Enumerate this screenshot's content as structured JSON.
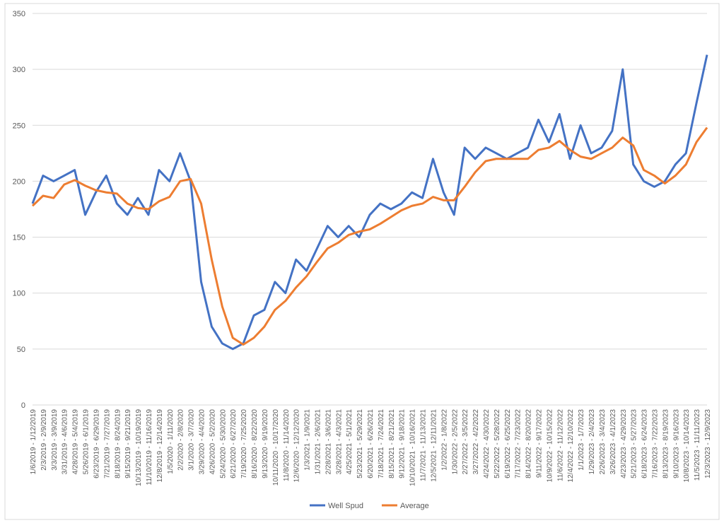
{
  "chart_data": {
    "type": "line",
    "categories": [
      "1/6/2019 - 1/12/2019",
      "2/3/2019 - 2/9/2019",
      "3/3/2019 - 3/9/2019",
      "3/31/2019 - 4/6/2019",
      "4/28/2019 - 5/4/2019",
      "5/26/2019 - 6/1/2019",
      "6/23/2019 - 6/29/2019",
      "7/21/2019 - 7/27/2019",
      "8/18/2019 - 8/24/2019",
      "9/15/2019 - 9/21/2019",
      "10/13/2019 - 10/19/2019",
      "11/10/2019 - 11/16/2019",
      "12/8/2019 - 12/14/2019",
      "1/5/2020 - 1/11/2020",
      "2/2/2020 - 2/8/2020",
      "3/1/2020 - 3/7/2020",
      "3/29/2020 - 4/4/2020",
      "4/26/2020 - 5/2/2020",
      "5/24/2020 - 5/30/2020",
      "6/21/2020 - 6/27/2020",
      "7/19/2020 - 7/25/2020",
      "8/16/2020 - 8/22/2020",
      "9/13/2020 - 9/19/2020",
      "10/11/2020 - 10/17/2020",
      "11/8/2020 - 11/14/2020",
      "12/6/2020 - 12/12/2020",
      "1/3/2021 - 1/9/2021",
      "1/31/2021 - 2/6/2021",
      "2/28/2021 - 3/6/2021",
      "3/28/2021 - 4/3/2021",
      "4/25/2021 - 5/1/2021",
      "5/23/2021 - 5/29/2021",
      "6/20/2021 - 6/26/2021",
      "7/18/2021 - 7/24/2021",
      "8/15/2021 - 8/21/2021",
      "9/12/2021 - 9/18/2021",
      "10/10/2021 - 10/16/2021",
      "11/7/2021 - 11/13/2021",
      "12/5/2021 - 12/11/2021",
      "1/2/2022 - 1/8/2022",
      "1/30/2022 - 2/5/2022",
      "2/27/2022 - 3/5/2022",
      "3/27/2022 - 4/2/2022",
      "4/24/2022 - 4/30/2022",
      "5/22/2022 - 5/28/2022",
      "6/19/2022 - 6/25/2022",
      "7/17/2022 - 7/23/2022",
      "8/14/2022 - 8/20/2022",
      "9/11/2022 - 9/17/2022",
      "10/9/2022 - 10/15/2022",
      "11/6/2022 - 11/12/2022",
      "12/4/2022 - 12/10/2022",
      "1/1/2023 - 1/7/2023",
      "1/29/2023 - 2/4/2023",
      "2/26/2023 - 3/4/2023",
      "3/26/2023 - 4/1/2023",
      "4/23/2023 - 4/29/2023",
      "5/21/2023 - 5/27/2023",
      "6/18/2023 - 6/24/2023",
      "7/16/2023 - 7/22/2023",
      "8/13/2023 - 8/19/2023",
      "9/10/2023 - 9/16/2023",
      "10/8/2023 - 10/14/2023",
      "11/5/2023 - 11/11/2023",
      "12/3/2023 - 12/9/2023"
    ],
    "series": [
      {
        "name": "Well Spud",
        "color": "#4472c4",
        "values": [
          180,
          205,
          200,
          205,
          210,
          170,
          190,
          205,
          180,
          170,
          185,
          170,
          210,
          200,
          225,
          200,
          110,
          70,
          55,
          50,
          55,
          80,
          85,
          110,
          100,
          130,
          120,
          140,
          160,
          150,
          160,
          150,
          170,
          180,
          175,
          180,
          190,
          185,
          220,
          190,
          170,
          230,
          220,
          230,
          225,
          220,
          225,
          230,
          255,
          235,
          260,
          220,
          250,
          225,
          230,
          245,
          300,
          215,
          200,
          195,
          200,
          215,
          225,
          270,
          313
        ]
      },
      {
        "name": "Average",
        "color": "#ed7d31",
        "values": [
          178,
          187,
          185,
          197,
          201,
          196,
          192,
          190,
          189,
          180,
          176,
          175,
          182,
          186,
          200,
          202,
          180,
          130,
          88,
          60,
          54,
          60,
          70,
          85,
          93,
          105,
          115,
          128,
          140,
          145,
          152,
          155,
          157,
          162,
          168,
          174,
          178,
          180,
          186,
          183,
          183,
          195,
          208,
          218,
          220,
          220,
          220,
          220,
          228,
          230,
          236,
          228,
          222,
          220,
          225,
          230,
          239,
          232,
          210,
          205,
          198,
          205,
          215,
          235,
          248
        ]
      }
    ],
    "ylim": [
      0,
      350
    ],
    "yticks": [
      0,
      50,
      100,
      150,
      200,
      250,
      300,
      350
    ],
    "grid": true,
    "legend": "bottom"
  }
}
